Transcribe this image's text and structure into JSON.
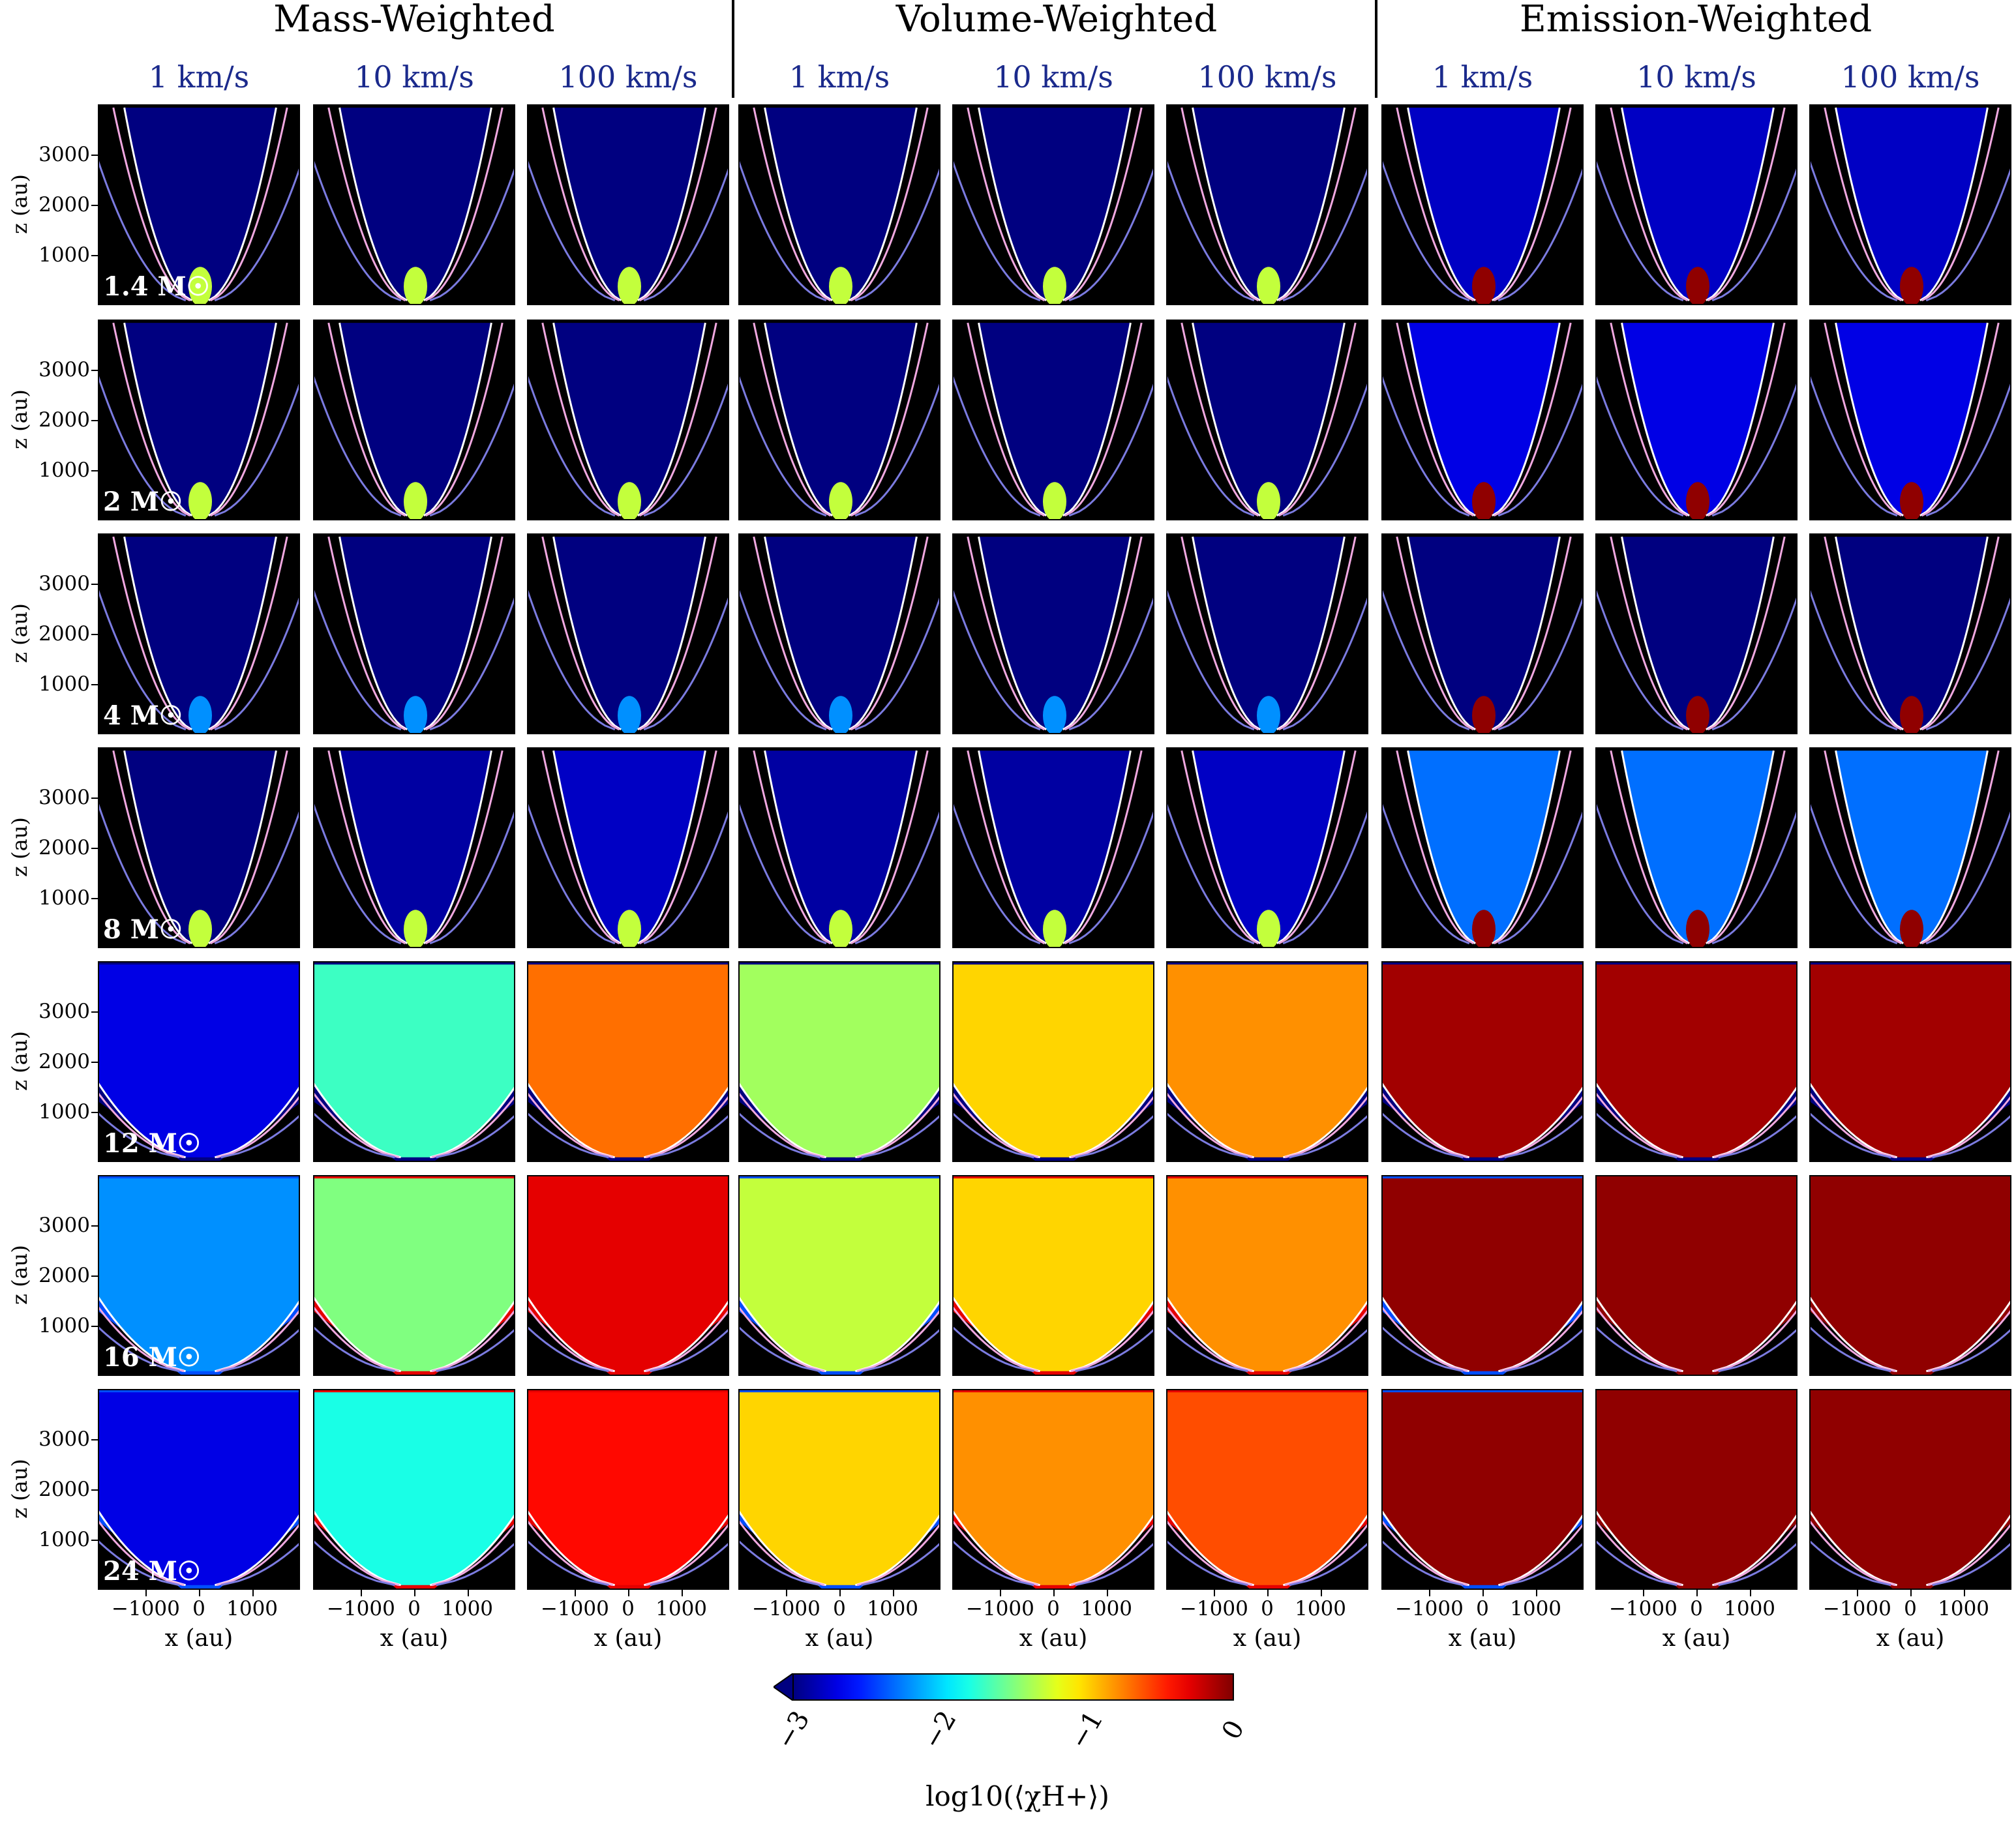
{
  "groups": [
    {
      "title": "Mass-Weighted"
    },
    {
      "title": "Volume-Weighted"
    },
    {
      "title": "Emission-Weighted"
    }
  ],
  "velocity_labels": [
    "1 km/s",
    "10 km/s",
    "100 km/s"
  ],
  "colors": {
    "velocity_label": "#1b2a8c",
    "contour_outer": "#7b7be0",
    "contour_mid": "#f0a8e0",
    "contour_inner": "#ffffff"
  },
  "chart_data": {
    "type": "heatmap",
    "title": "",
    "xlabel": "x (au)",
    "ylabel": "z (au)",
    "x_ticks": [
      "−1000",
      "0",
      "1000"
    ],
    "x_tick_values": [
      -1000,
      0,
      1000
    ],
    "y_ticks": [
      "1000",
      "2000",
      "3000"
    ],
    "y_tick_values": [
      1000,
      2000,
      3000
    ],
    "xlim": [
      -1900,
      1900
    ],
    "ylim": [
      0,
      4000
    ],
    "rows": [
      {
        "mass_label": "1.4 M☉",
        "mass": 1.4
      },
      {
        "mass_label": "2 M☉",
        "mass": 2
      },
      {
        "mass_label": "4 M☉",
        "mass": 4
      },
      {
        "mass_label": "8 M☉",
        "mass": 8
      },
      {
        "mass_label": "12 M☉",
        "mass": 12
      },
      {
        "mass_label": "16 M☉",
        "mass": 16
      },
      {
        "mass_label": "24 M☉",
        "mass": 24
      }
    ],
    "columns": [
      {
        "weighting": "Mass-Weighted",
        "velocity": "1 km/s"
      },
      {
        "weighting": "Mass-Weighted",
        "velocity": "10 km/s"
      },
      {
        "weighting": "Mass-Weighted",
        "velocity": "100 km/s"
      },
      {
        "weighting": "Volume-Weighted",
        "velocity": "1 km/s"
      },
      {
        "weighting": "Volume-Weighted",
        "velocity": "10 km/s"
      },
      {
        "weighting": "Volume-Weighted",
        "velocity": "100 km/s"
      },
      {
        "weighting": "Emission-Weighted",
        "velocity": "1 km/s"
      },
      {
        "weighting": "Emission-Weighted",
        "velocity": "10 km/s"
      },
      {
        "weighting": "Emission-Weighted",
        "velocity": "100 km/s"
      }
    ],
    "approx_interior_log10": [
      [
        -3.0,
        -3.0,
        -3.0,
        -3.0,
        -3.0,
        -3.0,
        -2.8,
        -2.8,
        -2.8
      ],
      [
        -3.0,
        -3.0,
        -3.0,
        -3.0,
        -3.0,
        -3.0,
        -2.7,
        -2.7,
        -2.7
      ],
      [
        -3.0,
        -3.0,
        -3.0,
        -3.0,
        -3.0,
        -3.0,
        -3.0,
        -3.0,
        -3.0
      ],
      [
        -3.0,
        -2.9,
        -2.8,
        -2.9,
        -2.9,
        -2.8,
        -2.3,
        -2.3,
        -2.3
      ],
      [
        -2.7,
        -1.7,
        -0.7,
        -1.4,
        -1.0,
        -0.8,
        -0.1,
        -0.1,
        -0.1
      ],
      [
        -2.2,
        -1.5,
        -0.3,
        -1.3,
        -1.0,
        -0.8,
        -0.05,
        -0.05,
        -0.05
      ],
      [
        -2.7,
        -1.8,
        -0.4,
        -1.0,
        -0.8,
        -0.6,
        -0.05,
        -0.05,
        -0.05
      ]
    ],
    "colorbar": {
      "colormap": "jet",
      "vmin": -3,
      "vmax": 0,
      "extend": "min",
      "ticks": [
        "−3",
        "−2",
        "−1",
        "0"
      ],
      "tick_values": [
        -3,
        -2,
        -1,
        0
      ],
      "label": "log10(⟨χH+⟩)"
    }
  }
}
